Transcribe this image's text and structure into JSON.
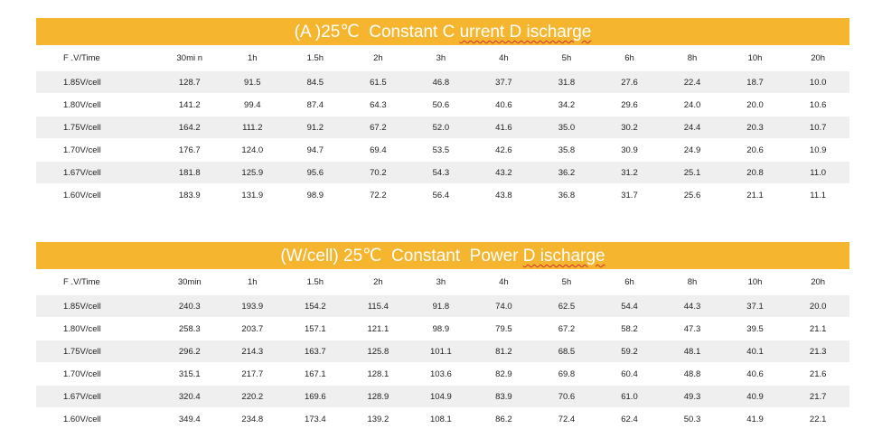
{
  "current_table": {
    "banner": {
      "prefix": "(A )25",
      "unit": "℃",
      "middle": "  Constant C ",
      "underlined": "urrent D ischarge"
    },
    "columns": [
      "F .V/Time",
      "30mi n",
      "1h",
      "1.5h",
      "2h",
      "3h",
      "4h",
      "5h",
      "6h",
      "8h",
      "10h",
      "20h"
    ],
    "rows": [
      {
        "label": "1.85V/cell",
        "values": [
          "128.7",
          "91.5",
          "84.5",
          "61.5",
          "46.8",
          "37.7",
          "31.8",
          "27.6",
          "22.4",
          "18.7",
          "10.0"
        ]
      },
      {
        "label": "1.80V/cell",
        "values": [
          "141.2",
          "99.4",
          "87.4",
          "64.3",
          "50.6",
          "40.6",
          "34.2",
          "29.6",
          "24.0",
          "20.0",
          "10.6"
        ]
      },
      {
        "label": "1.75V/cell",
        "values": [
          "164.2",
          "111.2",
          "91.2",
          "67.2",
          "52.0",
          "41.6",
          "35.0",
          "30.2",
          "24.4",
          "20.3",
          "10.7"
        ]
      },
      {
        "label": "1.70V/cell",
        "values": [
          "176.7",
          "124.0",
          "94.7",
          "69.4",
          "53.5",
          "42.6",
          "35.8",
          "30.9",
          "24.9",
          "20.6",
          "10.9"
        ]
      },
      {
        "label": "1.67V/cell",
        "values": [
          "181.8",
          "125.9",
          "95.6",
          "70.2",
          "54.3",
          "43.2",
          "36.2",
          "31.2",
          "25.1",
          "20.8",
          "11.0"
        ]
      },
      {
        "label": "1.60V/cell",
        "values": [
          "183.9",
          "131.9",
          "98.9",
          "72.2",
          "56.4",
          "43.8",
          "36.8",
          "31.7",
          "25.6",
          "21.1",
          "11.1"
        ]
      }
    ]
  },
  "power_table": {
    "banner": {
      "prefix": "(W/cell) 25",
      "unit": "℃",
      "middle": "  Constant  Power ",
      "underlined": "D ischarge"
    },
    "columns": [
      "F .V/Time",
      "30min",
      "1h",
      "1.5h",
      "2h",
      "3h",
      "4h",
      "5h",
      "6h",
      "8h",
      "10h",
      "20h"
    ],
    "rows": [
      {
        "label": "1.85V/cell",
        "values": [
          "240.3",
          "193.9",
          "154.2",
          "115.4",
          "91.8",
          "74.0",
          "62.5",
          "54.4",
          "44.3",
          "37.1",
          "20.0"
        ]
      },
      {
        "label": "1.80V/cell",
        "values": [
          "258.3",
          "203.7",
          "157.1",
          "121.1",
          "98.9",
          "79.5",
          "67.2",
          "58.2",
          "47.3",
          "39.5",
          "21.1"
        ]
      },
      {
        "label": "1.75V/cell",
        "values": [
          "296.2",
          "214.3",
          "163.7",
          "125.8",
          "101.1",
          "81.2",
          "68.5",
          "59.2",
          "48.1",
          "40.1",
          "21.3"
        ]
      },
      {
        "label": "1.70V/cell",
        "values": [
          "315.1",
          "217.7",
          "167.1",
          "128.1",
          "103.6",
          "82.9",
          "69.8",
          "60.4",
          "48.8",
          "40.6",
          "21.6"
        ]
      },
      {
        "label": "1.67V/cell",
        "values": [
          "320.4",
          "220.2",
          "169.6",
          "128.9",
          "104.9",
          "83.9",
          "70.6",
          "61.0",
          "49.3",
          "40.9",
          "21.7"
        ]
      },
      {
        "label": "1.60V/cell",
        "values": [
          "349.4",
          "234.8",
          "173.4",
          "139.2",
          "108.1",
          "86.2",
          "72.4",
          "62.4",
          "50.3",
          "41.9",
          "22.1"
        ]
      }
    ]
  }
}
